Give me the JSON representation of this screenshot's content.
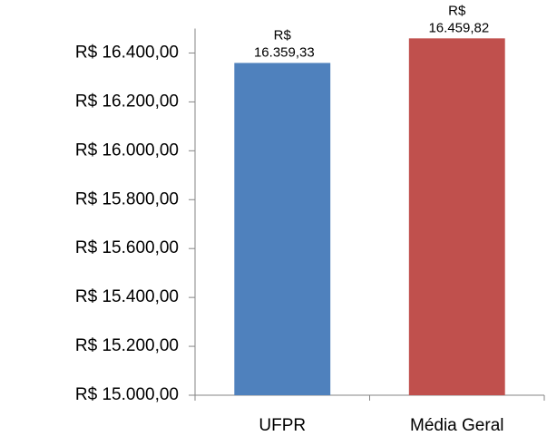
{
  "chart_data": {
    "type": "bar",
    "categories": [
      "UFPR",
      "Média Geral"
    ],
    "values": [
      16359.33,
      16459.82
    ],
    "value_labels": [
      "R$ 16.359,33",
      "R$ 16.459,82"
    ],
    "colors": [
      "#4f81bd",
      "#c0504d"
    ],
    "ylim": [
      15000,
      16500
    ],
    "yticks": [
      {
        "value": 15000,
        "label": "R$ 15.000,00"
      },
      {
        "value": 15200,
        "label": "R$ 15.200,00"
      },
      {
        "value": 15400,
        "label": "R$ 15.400,00"
      },
      {
        "value": 15600,
        "label": "R$ 15.600,00"
      },
      {
        "value": 15800,
        "label": "R$ 15.800,00"
      },
      {
        "value": 16000,
        "label": "R$ 16.000,00"
      },
      {
        "value": 16200,
        "label": "R$ 16.200,00"
      },
      {
        "value": 16400,
        "label": "R$ 16.400,00"
      }
    ],
    "grid": false
  }
}
